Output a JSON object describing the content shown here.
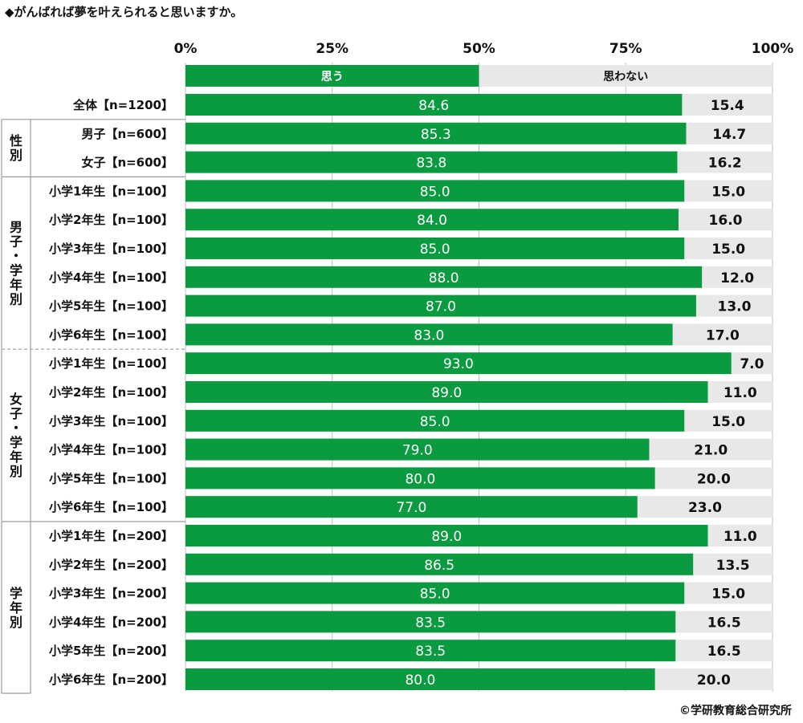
{
  "title": "◆がんばれば夢を叶えられると思いますか。",
  "credit": "©学研教育総合研究所",
  "colors": {
    "agree": "#0a9a3f",
    "disagree": "#e8e8e8",
    "grid": "#bfbfbf",
    "frame": "#9a9a9a"
  },
  "chart_data": {
    "type": "bar",
    "orientation": "horizontal",
    "stacked": true,
    "xlim": [
      0,
      100
    ],
    "ticks": [
      "0%",
      "25%",
      "50%",
      "75%",
      "100%"
    ],
    "tick_values": [
      0,
      25,
      50,
      75,
      100
    ],
    "legend": [
      "思う",
      "思わない"
    ],
    "groups": [
      "性別",
      "男子・学年別",
      "女子・学年別",
      "学年別"
    ],
    "rows": [
      {
        "label": "全体【n=1200】",
        "agree": 84.6,
        "disagree": 15.4,
        "agree_label": "84.6",
        "disagree_label": "15.4"
      },
      {
        "label": "男子【n=600】",
        "agree": 85.3,
        "disagree": 14.7,
        "agree_label": "85.3",
        "disagree_label": "14.7"
      },
      {
        "label": "女子【n=600】",
        "agree": 83.8,
        "disagree": 16.2,
        "agree_label": "83.8",
        "disagree_label": "16.2"
      },
      {
        "label": "小学1年生【n=100】",
        "agree": 85.0,
        "disagree": 15.0,
        "agree_label": "85.0",
        "disagree_label": "15.0"
      },
      {
        "label": "小学2年生【n=100】",
        "agree": 84.0,
        "disagree": 16.0,
        "agree_label": "84.0",
        "disagree_label": "16.0"
      },
      {
        "label": "小学3年生【n=100】",
        "agree": 85.0,
        "disagree": 15.0,
        "agree_label": "85.0",
        "disagree_label": "15.0"
      },
      {
        "label": "小学4年生【n=100】",
        "agree": 88.0,
        "disagree": 12.0,
        "agree_label": "88.0",
        "disagree_label": "12.0"
      },
      {
        "label": "小学5年生【n=100】",
        "agree": 87.0,
        "disagree": 13.0,
        "agree_label": "87.0",
        "disagree_label": "13.0"
      },
      {
        "label": "小学6年生【n=100】",
        "agree": 83.0,
        "disagree": 17.0,
        "agree_label": "83.0",
        "disagree_label": "17.0"
      },
      {
        "label": "小学1年生【n=100】",
        "agree": 93.0,
        "disagree": 7.0,
        "agree_label": "93.0",
        "disagree_label": "7.0"
      },
      {
        "label": "小学2年生【n=100】",
        "agree": 89.0,
        "disagree": 11.0,
        "agree_label": "89.0",
        "disagree_label": "11.0"
      },
      {
        "label": "小学3年生【n=100】",
        "agree": 85.0,
        "disagree": 15.0,
        "agree_label": "85.0",
        "disagree_label": "15.0"
      },
      {
        "label": "小学4年生【n=100】",
        "agree": 79.0,
        "disagree": 21.0,
        "agree_label": "79.0",
        "disagree_label": "21.0"
      },
      {
        "label": "小学5年生【n=100】",
        "agree": 80.0,
        "disagree": 20.0,
        "agree_label": "80.0",
        "disagree_label": "20.0"
      },
      {
        "label": "小学6年生【n=100】",
        "agree": 77.0,
        "disagree": 23.0,
        "agree_label": "77.0",
        "disagree_label": "23.0"
      },
      {
        "label": "小学1年生【n=200】",
        "agree": 89.0,
        "disagree": 11.0,
        "agree_label": "89.0",
        "disagree_label": "11.0"
      },
      {
        "label": "小学2年生【n=200】",
        "agree": 86.5,
        "disagree": 13.5,
        "agree_label": "86.5",
        "disagree_label": "13.5"
      },
      {
        "label": "小学3年生【n=200】",
        "agree": 85.0,
        "disagree": 15.0,
        "agree_label": "85.0",
        "disagree_label": "15.0"
      },
      {
        "label": "小学4年生【n=200】",
        "agree": 83.5,
        "disagree": 16.5,
        "agree_label": "83.5",
        "disagree_label": "16.5"
      },
      {
        "label": "小学5年生【n=200】",
        "agree": 83.5,
        "disagree": 16.5,
        "agree_label": "83.5",
        "disagree_label": "16.5"
      },
      {
        "label": "小学6年生【n=200】",
        "agree": 80.0,
        "disagree": 20.0,
        "agree_label": "80.0",
        "disagree_label": "20.0"
      }
    ]
  }
}
